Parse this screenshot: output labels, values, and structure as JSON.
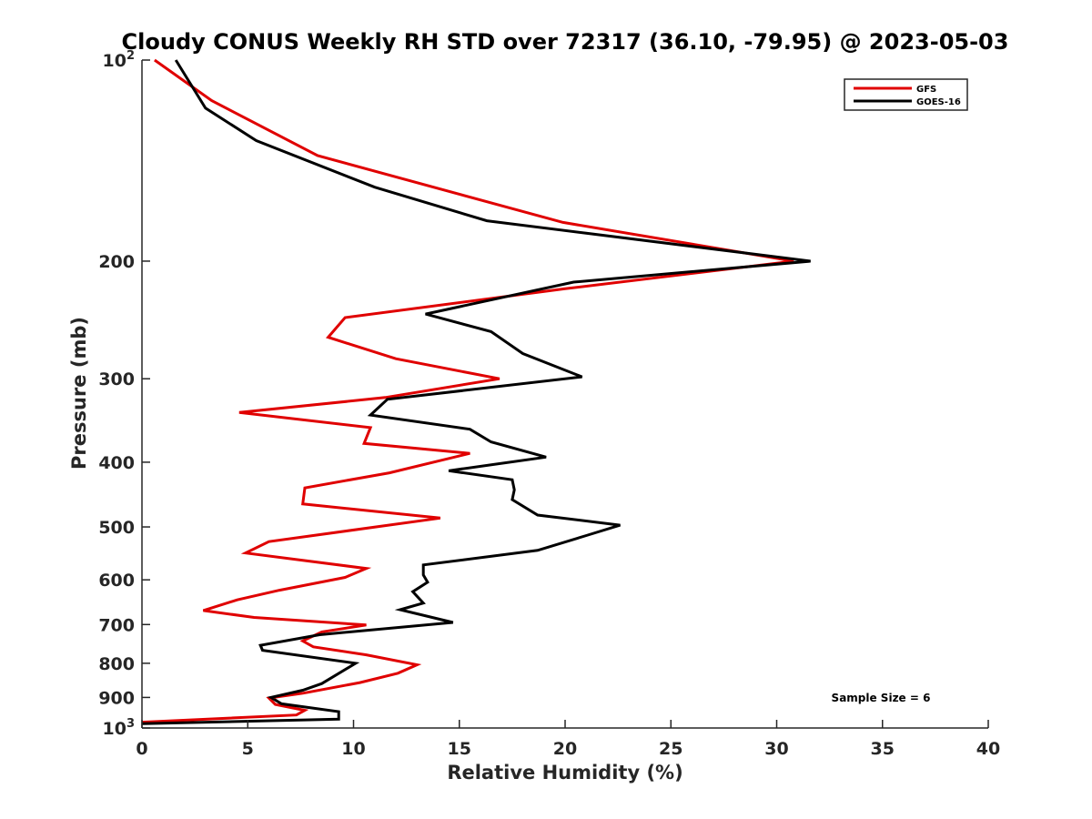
{
  "chart_data": {
    "type": "line",
    "title": "Cloudy CONUS Weekly RH STD over 72317 (36.10, -79.95) @ 2023-05-03",
    "xlabel": "Relative Humidity (%)",
    "ylabel": "Pressure (mb)",
    "xlim": [
      0,
      40
    ],
    "ylim": [
      100,
      1000
    ],
    "y_scale": "log",
    "y_reversed": true,
    "x_ticks": [
      0,
      5,
      10,
      15,
      20,
      25,
      30,
      35,
      40
    ],
    "x_tick_labels": [
      "0",
      "5",
      "10",
      "15",
      "20",
      "25",
      "30",
      "35",
      "40"
    ],
    "y_ticks": [
      {
        "value": 100,
        "base": "10",
        "exp": "2"
      },
      {
        "value": 200,
        "label": "200"
      },
      {
        "value": 300,
        "label": "300"
      },
      {
        "value": 400,
        "label": "400"
      },
      {
        "value": 500,
        "label": "500"
      },
      {
        "value": 600,
        "label": "600"
      },
      {
        "value": 700,
        "label": "700"
      },
      {
        "value": 800,
        "label": "800"
      },
      {
        "value": 900,
        "label": "900"
      },
      {
        "value": 1000,
        "base": "10",
        "exp": "3"
      }
    ],
    "grid": false,
    "legend_position": "top-right",
    "annotation": "Sample Size = 6",
    "series": [
      {
        "name": "GFS",
        "color": "#e00000",
        "points": [
          [
            0.6,
            100
          ],
          [
            3.3,
            115
          ],
          [
            8.3,
            139
          ],
          [
            19.9,
            175
          ],
          [
            30.8,
            200
          ],
          [
            20.0,
            220
          ],
          [
            9.6,
            243
          ],
          [
            8.8,
            260
          ],
          [
            12.0,
            280
          ],
          [
            16.9,
            300
          ],
          [
            11.5,
            320
          ],
          [
            4.6,
            337
          ],
          [
            10.8,
            355
          ],
          [
            10.5,
            375
          ],
          [
            15.5,
            388
          ],
          [
            11.7,
            415
          ],
          [
            7.7,
            437
          ],
          [
            7.6,
            462
          ],
          [
            14.1,
            485
          ],
          [
            6.0,
            526
          ],
          [
            4.9,
            547
          ],
          [
            10.6,
            577
          ],
          [
            9.6,
            595
          ],
          [
            6.5,
            622
          ],
          [
            4.5,
            643
          ],
          [
            2.9,
            667
          ],
          [
            5.3,
            683
          ],
          [
            10.6,
            701
          ],
          [
            8.5,
            718
          ],
          [
            7.6,
            741
          ],
          [
            8.1,
            756
          ],
          [
            10.6,
            777
          ],
          [
            13.0,
            804
          ],
          [
            12.1,
            828
          ],
          [
            10.3,
            855
          ],
          [
            7.6,
            887
          ],
          [
            6.0,
            902
          ],
          [
            6.3,
            922
          ],
          [
            7.7,
            941
          ],
          [
            7.3,
            956
          ],
          [
            0.0,
            980
          ]
        ]
      },
      {
        "name": "GOES-16",
        "color": "#000000",
        "points": [
          [
            1.6,
            100
          ],
          [
            3.0,
            118
          ],
          [
            5.4,
            132
          ],
          [
            11.0,
            155
          ],
          [
            16.3,
            174
          ],
          [
            31.6,
            200
          ],
          [
            20.4,
            215
          ],
          [
            13.4,
            240
          ],
          [
            16.5,
            255
          ],
          [
            18.0,
            275
          ],
          [
            20.8,
            298
          ],
          [
            11.6,
            322
          ],
          [
            10.8,
            340
          ],
          [
            15.5,
            357
          ],
          [
            16.5,
            373
          ],
          [
            19.1,
            393
          ],
          [
            14.5,
            412
          ],
          [
            17.5,
            425
          ],
          [
            17.6,
            440
          ],
          [
            17.5,
            455
          ],
          [
            18.7,
            480
          ],
          [
            22.6,
            497
          ],
          [
            21.0,
            515
          ],
          [
            18.7,
            542
          ],
          [
            13.3,
            570
          ],
          [
            13.3,
            590
          ],
          [
            13.5,
            605
          ],
          [
            12.8,
            625
          ],
          [
            13.3,
            650
          ],
          [
            12.2,
            665
          ],
          [
            14.7,
            695
          ],
          [
            8.4,
            725
          ],
          [
            5.6,
            752
          ],
          [
            5.7,
            765
          ],
          [
            10.1,
            800
          ],
          [
            8.5,
            858
          ],
          [
            7.6,
            878
          ],
          [
            6.1,
            900
          ],
          [
            6.6,
            920
          ],
          [
            9.3,
            945
          ],
          [
            9.3,
            970
          ],
          [
            0.0,
            985
          ]
        ]
      }
    ]
  }
}
